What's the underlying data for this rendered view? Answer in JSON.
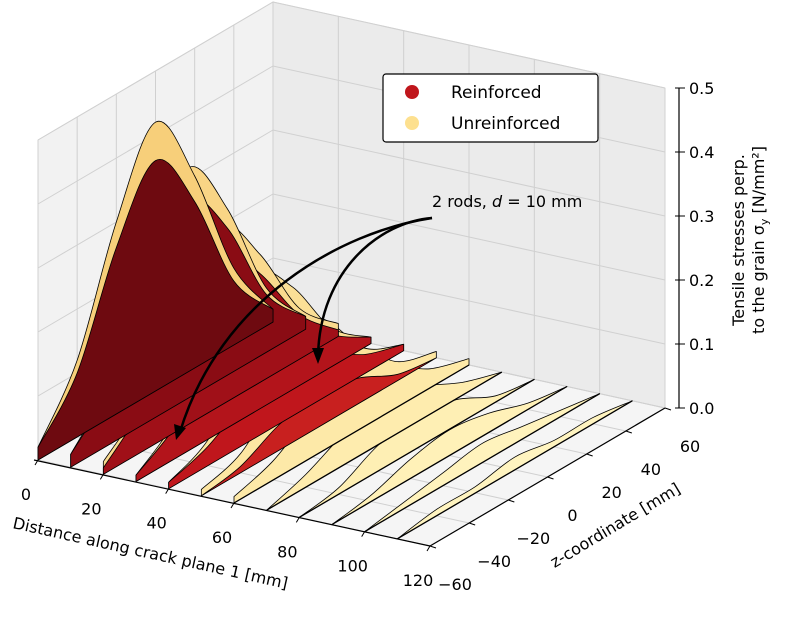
{
  "chart_data": {
    "type": "3d-waterfall",
    "xlabel": "Distance along crack plane 1 [mm]",
    "zlabel": "z-coordinate [mm]",
    "ylabel_line1": "Tensile stresses perp.",
    "ylabel_line2": "to the grain σ",
    "ylabel_sub": "y",
    "ylabel_unit": " [N/mm²]",
    "x_ticks": [
      "0",
      "20",
      "40",
      "60",
      "80",
      "100",
      "120"
    ],
    "z_ticks": [
      "−60",
      "−40",
      "−20",
      "0",
      "20",
      "40",
      "60"
    ],
    "y_ticks": [
      "0.0",
      "0.1",
      "0.2",
      "0.3",
      "0.4",
      "0.5"
    ],
    "xlim": [
      0,
      120
    ],
    "zlim": [
      -60,
      60
    ],
    "ylim": [
      0,
      0.5
    ],
    "grid": true,
    "legend_position": "top-right",
    "annotation": {
      "text_pre": "2 rods, ",
      "text_var": "d",
      "text_post": " = 10 mm"
    },
    "z": [
      -60,
      -40,
      -20,
      0,
      20,
      40,
      60
    ],
    "x": [
      0,
      10,
      20,
      30,
      40,
      50,
      60,
      70,
      80,
      90,
      100,
      110
    ],
    "series": [
      {
        "name": "Unreinforced",
        "color": "#fde08f",
        "values": [
          [
            0.02,
            0.12,
            0.3,
            0.42,
            0.3,
            0.12,
            0.02
          ],
          [
            0.02,
            0.1,
            0.26,
            0.36,
            0.26,
            0.1,
            0.02
          ],
          [
            0.02,
            0.08,
            0.2,
            0.28,
            0.2,
            0.08,
            0.02
          ],
          [
            0.01,
            0.06,
            0.16,
            0.22,
            0.16,
            0.06,
            0.01
          ],
          [
            0.01,
            0.04,
            0.12,
            0.16,
            0.12,
            0.04,
            0.01
          ],
          [
            0.01,
            0.03,
            0.09,
            0.12,
            0.09,
            0.03,
            0.01
          ],
          [
            0.01,
            0.03,
            0.07,
            0.09,
            0.07,
            0.03,
            0.01
          ],
          [
            0,
            0.02,
            0.05,
            0.07,
            0.05,
            0.02,
            0
          ],
          [
            0,
            0.01,
            0.04,
            0.05,
            0.04,
            0.01,
            0
          ],
          [
            0,
            0.01,
            0.03,
            0.04,
            0.03,
            0.01,
            0
          ],
          [
            0,
            0.01,
            0.02,
            0.03,
            0.02,
            0.01,
            0
          ],
          [
            0,
            0.01,
            0.01,
            0.02,
            0.01,
            0.01,
            0
          ]
        ]
      },
      {
        "name": "Reinforced",
        "color": "#c0161c",
        "values": [
          [
            0.02,
            0.1,
            0.26,
            0.36,
            0.26,
            0.1,
            0.02
          ],
          [
            0.02,
            0.09,
            0.23,
            0.31,
            0.23,
            0.09,
            0.02
          ],
          [
            0.01,
            0.07,
            0.17,
            0.24,
            0.17,
            0.07,
            0.01
          ],
          [
            0.01,
            0.05,
            0.12,
            0.17,
            0.12,
            0.05,
            0.01
          ],
          [
            0.01,
            0.03,
            0.07,
            0.1,
            0.07,
            0.03,
            0.01
          ],
          [
            0,
            0.01,
            0.04,
            0.05,
            0.04,
            0.01,
            0
          ],
          [
            0,
            0,
            0,
            0,
            0,
            0,
            0
          ],
          [
            0,
            0,
            0,
            0,
            0,
            0,
            0
          ],
          [
            0,
            0,
            0,
            0,
            0,
            0,
            0
          ],
          [
            0,
            0,
            0,
            0,
            0,
            0,
            0
          ],
          [
            0,
            0,
            0,
            0,
            0,
            0,
            0
          ],
          [
            0,
            0,
            0,
            0,
            0,
            0,
            0
          ]
        ]
      }
    ]
  }
}
